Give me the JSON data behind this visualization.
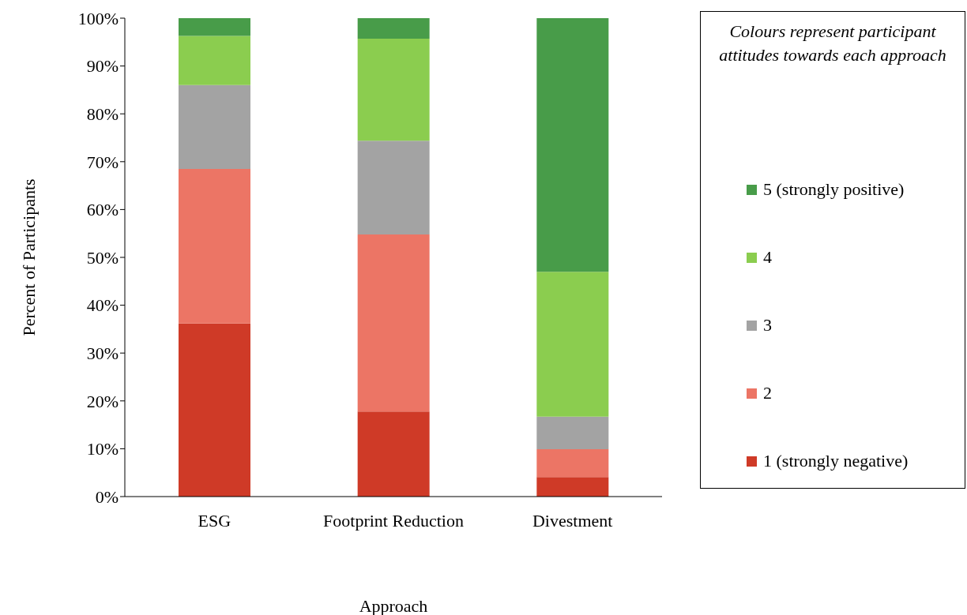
{
  "chart_data": {
    "type": "bar",
    "stacked": true,
    "xlabel": "Approach",
    "ylabel": "Percent of Participants",
    "legend_title": "Colours represent participant attitudes towards each approach",
    "legend": "right",
    "categories": [
      "ESG",
      "Footprint Reduction",
      "Divestment"
    ],
    "series": [
      {
        "name": "1 (strongly negative)",
        "color": "#cf3a27",
        "values": [
          36.2,
          17.8,
          4.1
        ]
      },
      {
        "name": "2",
        "color": "#ec7565",
        "values": [
          32.3,
          37.0,
          5.8
        ]
      },
      {
        "name": "3",
        "color": "#a3a3a3",
        "values": [
          17.5,
          19.6,
          6.8
        ]
      },
      {
        "name": "4",
        "color": "#8bcd4f",
        "values": [
          10.3,
          21.3,
          30.3
        ]
      },
      {
        "name": "5 (strongly positive)",
        "color": "#489c49",
        "values": [
          3.7,
          4.3,
          53.0
        ]
      }
    ],
    "ylim": [
      0,
      100
    ],
    "yticks": [
      {
        "value": 0,
        "label": "0%"
      },
      {
        "value": 10,
        "label": "10%"
      },
      {
        "value": 20,
        "label": "20%"
      },
      {
        "value": 30,
        "label": "30%"
      },
      {
        "value": 40,
        "label": "40%"
      },
      {
        "value": 50,
        "label": "50%"
      },
      {
        "value": 60,
        "label": "60%"
      },
      {
        "value": 70,
        "label": "70%"
      },
      {
        "value": 80,
        "label": "80%"
      },
      {
        "value": 90,
        "label": "90%"
      },
      {
        "value": 100,
        "label": "100%"
      }
    ]
  }
}
